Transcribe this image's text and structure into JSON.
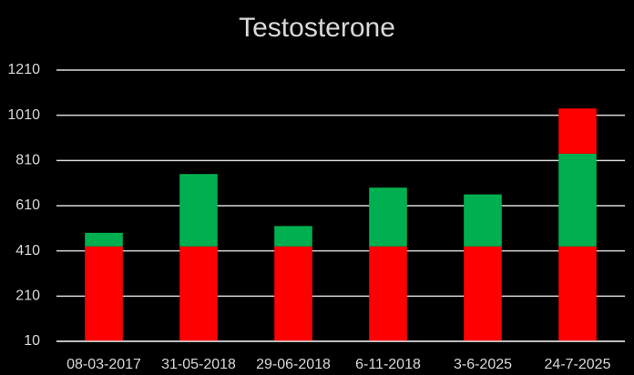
{
  "chart_data": {
    "type": "stacked_bar",
    "title": "Testosterone",
    "categories": [
      "08-03-2017",
      "31-05-2018",
      "29-06-2018",
      "6-11-2018",
      "3-6-2025",
      "24-7-2025"
    ],
    "series": [
      {
        "color": "#ff0000",
        "values": [
          430,
          430,
          430,
          430,
          430,
          430
        ]
      },
      {
        "color": "#00b050",
        "values": [
          60,
          320,
          90,
          260,
          230,
          410
        ]
      },
      {
        "color": "#ff0000",
        "values": [
          null,
          null,
          null,
          null,
          null,
          200
        ]
      }
    ],
    "ylim": [
      10,
      1210
    ],
    "yticks": [
      10,
      210,
      410,
      610,
      810,
      1010,
      1210
    ],
    "grid": true
  }
}
